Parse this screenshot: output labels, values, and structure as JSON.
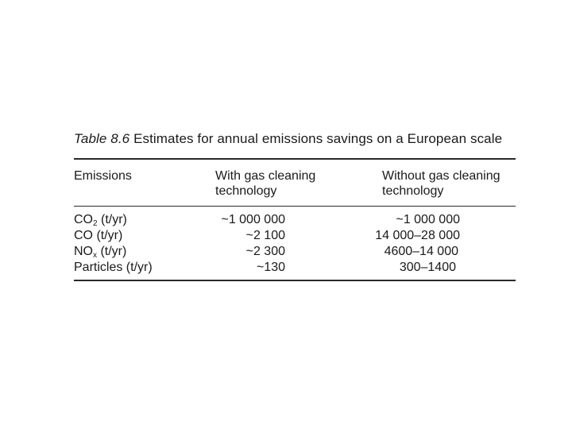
{
  "caption": {
    "label": "Table 8.6",
    "title": "Estimates for annual emissions savings on a European scale"
  },
  "table": {
    "headers": {
      "col1": "Emissions",
      "col2_line1": "With gas cleaning",
      "col2_line2": "technology",
      "col3_line1": "Without gas cleaning",
      "col3_line2": "technology"
    },
    "rows": [
      {
        "name": "CO",
        "sub": "2",
        "unit": " (t/yr)",
        "with": "~1 000 000",
        "without": "~1 000 000"
      },
      {
        "name": "CO",
        "sub": "",
        "unit": " (t/yr)",
        "with": "~2 100",
        "without": "14 000–28 000"
      },
      {
        "name": "NO",
        "sub": "x",
        "unit": " (t/yr)",
        "with": "~2 300",
        "without": "4600–14 000"
      },
      {
        "name": "Particles",
        "sub": "",
        "unit": " (t/yr)",
        "with": "~130",
        "without": "300–1400"
      }
    ]
  }
}
